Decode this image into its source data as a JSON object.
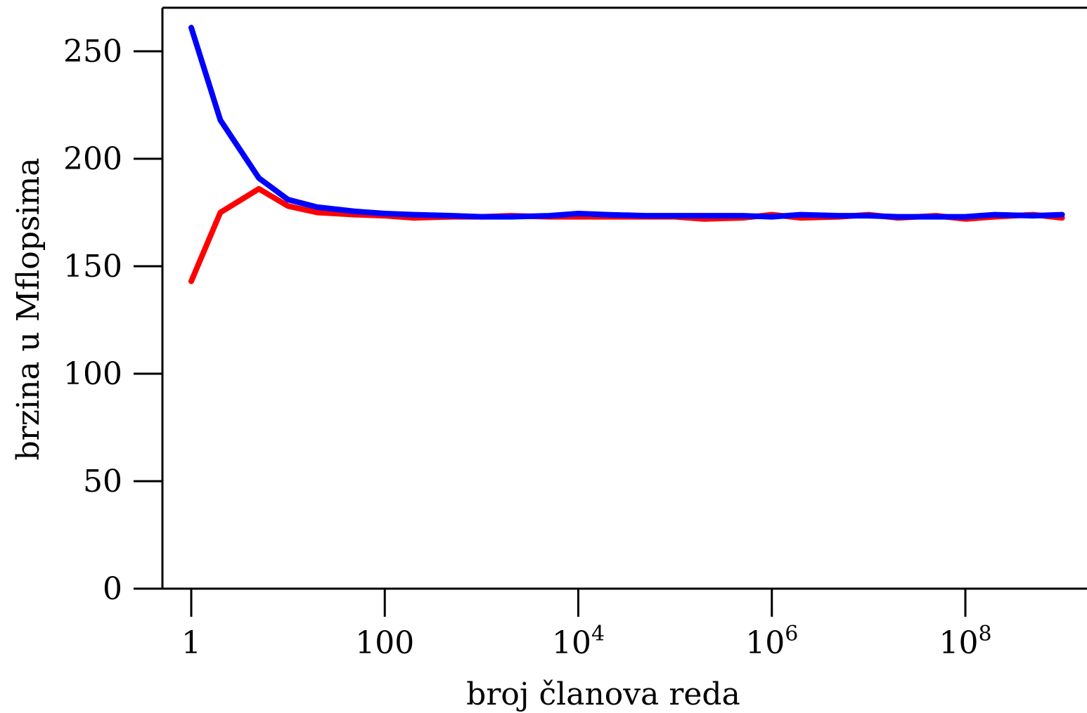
{
  "chart_data": {
    "type": "line",
    "title": "",
    "xlabel": "broj članova reda",
    "ylabel": "brzina u Mflopsima",
    "x_scale": "log10",
    "xlim": [
      0.5,
      1000000000
    ],
    "ylim": [
      0,
      270
    ],
    "grid": false,
    "legend": "none",
    "x_ticks": [
      {
        "value": 1,
        "base": "1",
        "exp": ""
      },
      {
        "value": 100,
        "base": "100",
        "exp": ""
      },
      {
        "value": 10000,
        "base": "10",
        "exp": "4"
      },
      {
        "value": 1000000,
        "base": "10",
        "exp": "6"
      },
      {
        "value": 100000000,
        "base": "10",
        "exp": "8"
      }
    ],
    "y_ticks": [
      "0",
      "50",
      "100",
      "150",
      "200",
      "250"
    ],
    "y_tick_values": [
      0,
      50,
      100,
      150,
      200,
      250
    ],
    "x": [
      1,
      2,
      5,
      10,
      20,
      50,
      100,
      200,
      500,
      1000,
      2000,
      5000,
      10000,
      20000,
      50000,
      100000,
      200000,
      500000,
      1000000,
      2000000,
      5000000,
      10000000,
      20000000,
      50000000,
      100000000,
      200000000,
      500000000,
      1000000000
    ],
    "series": [
      {
        "color": "#ff0000",
        "values": [
          143,
          175,
          186,
          178,
          175,
          174,
          173.5,
          172.5,
          173,
          173,
          173.5,
          173,
          173,
          173,
          173,
          173,
          172,
          172.5,
          174,
          172.5,
          173,
          174,
          172.5,
          173.5,
          172,
          173,
          174,
          172.5
        ]
      },
      {
        "color": "#0000ff",
        "values": [
          261,
          218,
          191,
          181,
          177.5,
          175.5,
          174.5,
          174,
          173.5,
          173,
          173,
          173.5,
          174.5,
          174,
          173.5,
          173.5,
          173.5,
          173.5,
          173,
          174,
          173.5,
          173.5,
          173,
          173,
          173,
          174,
          173.5,
          174
        ]
      }
    ]
  }
}
